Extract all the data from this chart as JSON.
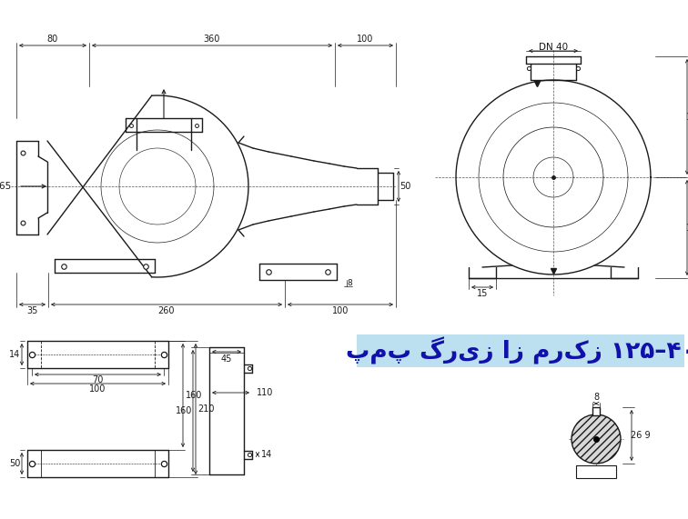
{
  "bg_color": "#ffffff",
  "line_color": "#1a1a1a",
  "title_text": "پمپ گریز از مرکز ۱۲۵–۴۰",
  "title_bg": "#bde0f0",
  "title_text_color": "#1010aa",
  "fig_width": 7.56,
  "fig_height": 5.71,
  "dpi": 100
}
